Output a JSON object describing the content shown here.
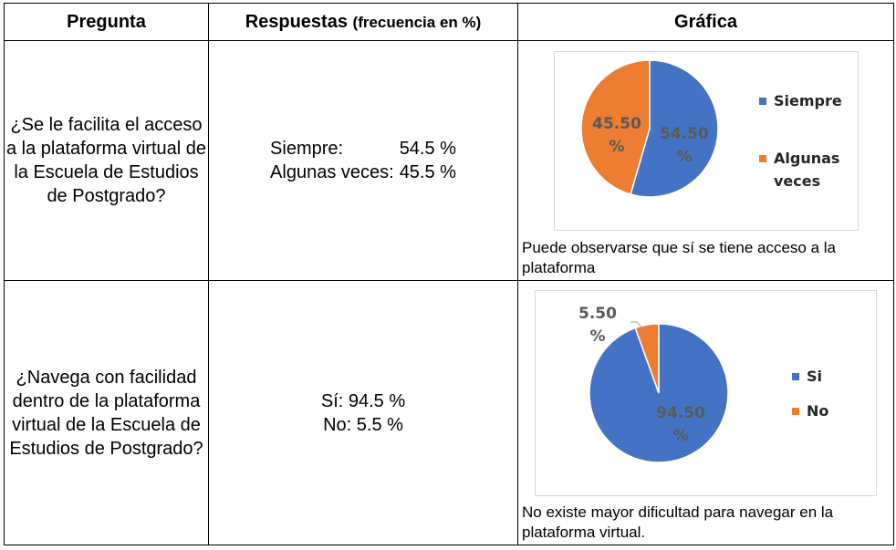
{
  "header": {
    "pregunta": "Pregunta",
    "respuestas": "Respuestas",
    "respuestas_sub": "(frecuencia en %)",
    "grafica": "Gráfica"
  },
  "rows": [
    {
      "question": "¿Se le facilita el acceso a la plataforma virtual de la Escuela de Estudios de Postgrado?",
      "responses": [
        {
          "label": "Siempre:",
          "value": "54.5 %"
        },
        {
          "label": "Algunas veces:",
          "value": "45.5 %"
        }
      ],
      "caption": "Puede observarse que sí se tiene acceso a la plataforma"
    },
    {
      "question": "¿Navega con facilidad dentro de la plataforma virtual de la Escuela de Estudios de Postgrado?",
      "responses": [
        {
          "label": "Sí: 94.5 %"
        },
        {
          "label": "No: 5.5 %"
        }
      ],
      "caption": "No existe mayor dificultad para navegar en la plataforma virtual."
    }
  ],
  "chart_data": [
    {
      "type": "pie",
      "categories": [
        "Siempre",
        "Algunas veces"
      ],
      "values": [
        54.5,
        45.5
      ],
      "data_labels": [
        "54.50 %",
        "45.50 %"
      ],
      "colors": [
        "#4472C4",
        "#ED7D31"
      ],
      "legend": "right",
      "legend_labels": [
        "Siempre",
        "Algunas",
        "veces"
      ]
    },
    {
      "type": "pie",
      "categories": [
        "Si",
        "No"
      ],
      "values": [
        94.5,
        5.5
      ],
      "data_labels": [
        "94.50 %",
        "5.50 %"
      ],
      "colors": [
        "#4472C4",
        "#ED7D31"
      ],
      "legend": "right",
      "legend_labels": [
        "Si",
        "No"
      ]
    }
  ]
}
